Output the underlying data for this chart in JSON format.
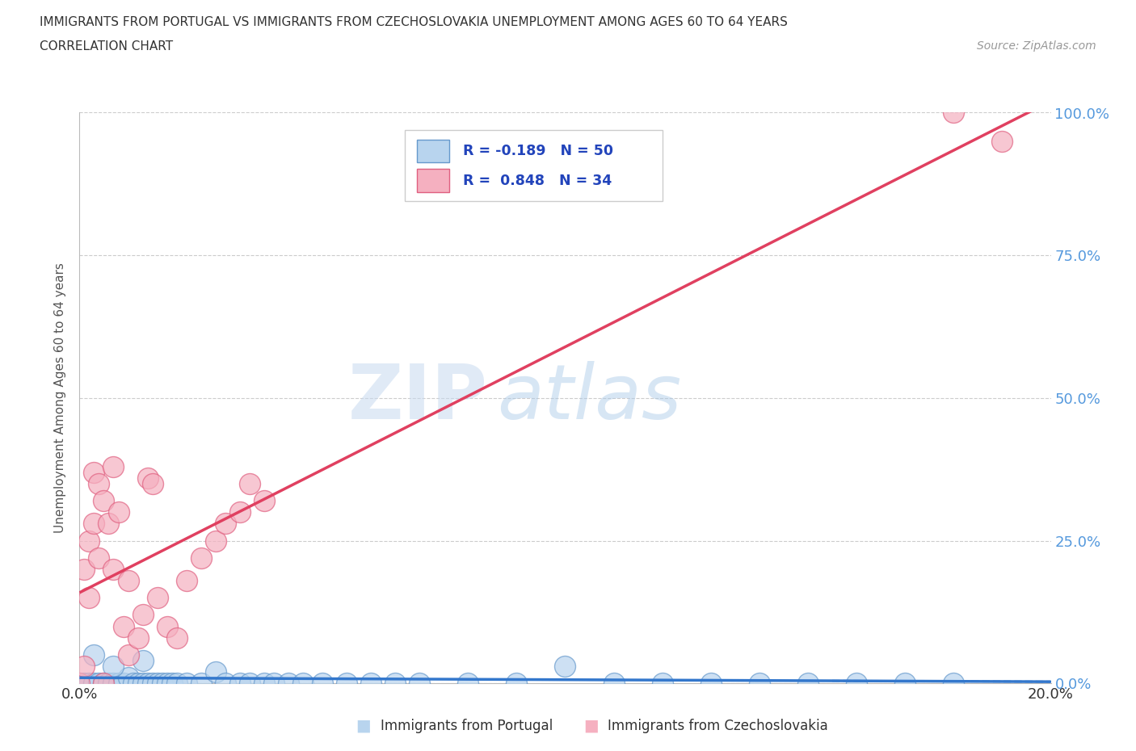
{
  "title_line1": "IMMIGRANTS FROM PORTUGAL VS IMMIGRANTS FROM CZECHOSLOVAKIA UNEMPLOYMENT AMONG AGES 60 TO 64 YEARS",
  "title_line2": "CORRELATION CHART",
  "source": "Source: ZipAtlas.com",
  "ylabel": "Unemployment Among Ages 60 to 64 years",
  "xmin": 0.0,
  "xmax": 0.2,
  "ymin": 0.0,
  "ymax": 1.0,
  "ytick_values": [
    0.0,
    0.25,
    0.5,
    0.75,
    1.0
  ],
  "ytick_labels": [
    "0.0%",
    "25.0%",
    "50.0%",
    "75.0%",
    "100.0%"
  ],
  "portugal_fill": "#b8d4ee",
  "portugal_edge": "#6699cc",
  "czechoslovakia_fill": "#f5b0c0",
  "czechoslovakia_edge": "#e06080",
  "trend_portugal_color": "#3377cc",
  "trend_czechoslovakia_color": "#e04060",
  "legend_label_portugal": "Immigrants from Portugal",
  "legend_label_czechoslovakia": "Immigrants from Czechoslovakia",
  "watermark_zip": "ZIP",
  "watermark_atlas": "atlas",
  "background_color": "#ffffff",
  "grid_color": "#cccccc",
  "portugal_x": [
    0.0,
    0.001,
    0.002,
    0.003,
    0.004,
    0.005,
    0.006,
    0.007,
    0.008,
    0.009,
    0.01,
    0.011,
    0.012,
    0.013,
    0.014,
    0.015,
    0.016,
    0.017,
    0.018,
    0.019,
    0.02,
    0.022,
    0.025,
    0.028,
    0.03,
    0.033,
    0.035,
    0.038,
    0.04,
    0.043,
    0.046,
    0.05,
    0.055,
    0.06,
    0.065,
    0.07,
    0.08,
    0.09,
    0.1,
    0.11,
    0.12,
    0.13,
    0.14,
    0.15,
    0.16,
    0.17,
    0.18,
    0.003,
    0.007,
    0.013
  ],
  "portugal_y": [
    0.0,
    0.0,
    0.0,
    0.0,
    0.0,
    0.0,
    0.0,
    0.0,
    0.0,
    0.0,
    0.01,
    0.0,
    0.0,
    0.0,
    0.0,
    0.0,
    0.0,
    0.0,
    0.0,
    0.0,
    0.0,
    0.0,
    0.0,
    0.02,
    0.0,
    0.0,
    0.0,
    0.0,
    0.0,
    0.0,
    0.0,
    0.0,
    0.0,
    0.0,
    0.0,
    0.0,
    0.0,
    0.0,
    0.03,
    0.0,
    0.0,
    0.0,
    0.0,
    0.0,
    0.0,
    0.0,
    0.0,
    0.05,
    0.03,
    0.04
  ],
  "czechoslovakia_x": [
    0.0,
    0.001,
    0.001,
    0.002,
    0.002,
    0.003,
    0.003,
    0.004,
    0.004,
    0.005,
    0.005,
    0.006,
    0.007,
    0.007,
    0.008,
    0.009,
    0.01,
    0.01,
    0.012,
    0.013,
    0.014,
    0.015,
    0.016,
    0.018,
    0.02,
    0.022,
    0.025,
    0.028,
    0.03,
    0.033,
    0.035,
    0.038,
    0.18,
    0.19
  ],
  "czechoslovakia_y": [
    0.0,
    0.03,
    0.2,
    0.25,
    0.15,
    0.37,
    0.28,
    0.35,
    0.22,
    0.0,
    0.32,
    0.28,
    0.38,
    0.2,
    0.3,
    0.1,
    0.05,
    0.18,
    0.08,
    0.12,
    0.36,
    0.35,
    0.15,
    0.1,
    0.08,
    0.18,
    0.22,
    0.25,
    0.28,
    0.3,
    0.35,
    0.32,
    1.0,
    0.95
  ]
}
